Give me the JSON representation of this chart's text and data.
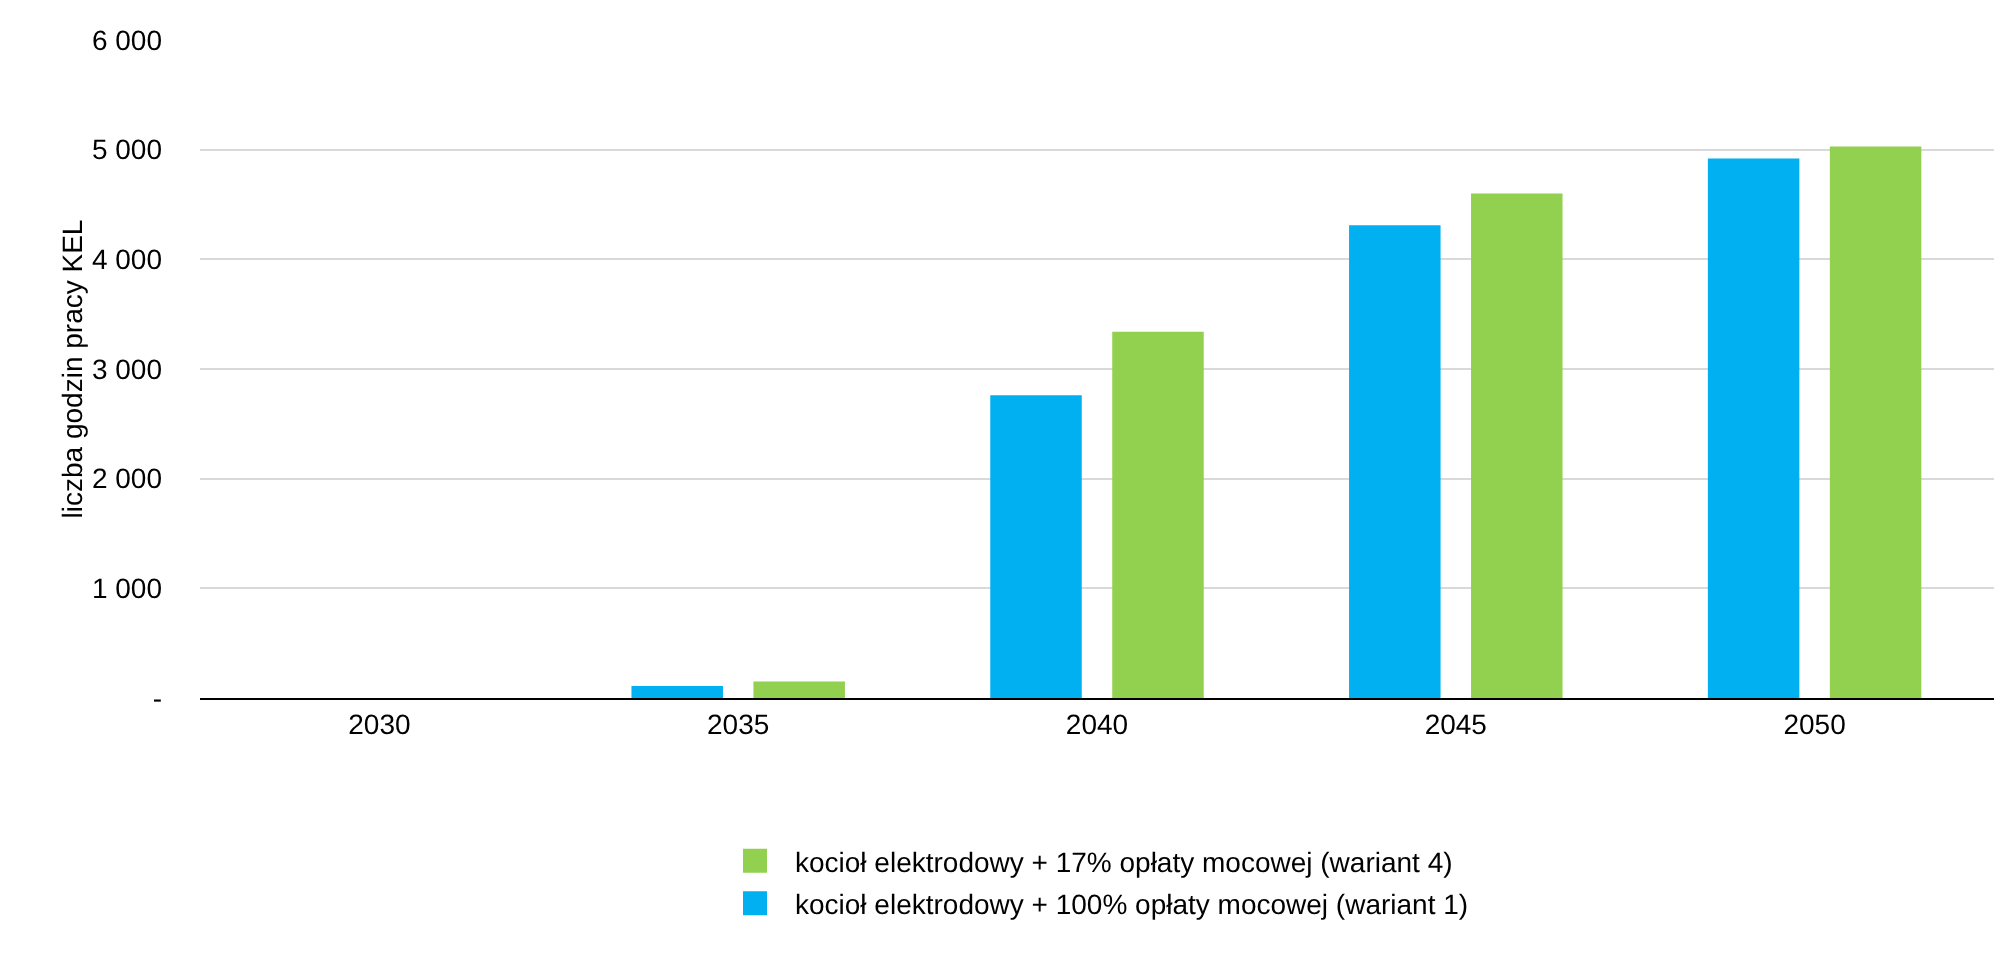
{
  "chart_data": {
    "type": "bar",
    "ylabel": "liczba godzin pracy KEL",
    "categories": [
      "2030",
      "2035",
      "2040",
      "2045",
      "2050"
    ],
    "series": [
      {
        "name": "kocioł elektrodowy + 100% opłaty mocowej (wariant 1)",
        "color": "#00b0f0",
        "values": [
          0,
          110,
          2760,
          4310,
          4920
        ]
      },
      {
        "name": "kocioł elektrodowy + 17% opłaty mocowej (wariant 4)",
        "color": "#92d050",
        "values": [
          0,
          150,
          3340,
          4600,
          5030
        ]
      }
    ],
    "ylim": [
      0,
      6000
    ],
    "yticks": [
      {
        "value": 0,
        "label": "-"
      },
      {
        "value": 1000,
        "label": "1 000"
      },
      {
        "value": 2000,
        "label": "2 000"
      },
      {
        "value": 3000,
        "label": "3 000"
      },
      {
        "value": 4000,
        "label": "4 000"
      },
      {
        "value": 5000,
        "label": "5 000"
      },
      {
        "value": 6000,
        "label": "6 000"
      }
    ],
    "grid": "y",
    "legend": "bottom"
  }
}
